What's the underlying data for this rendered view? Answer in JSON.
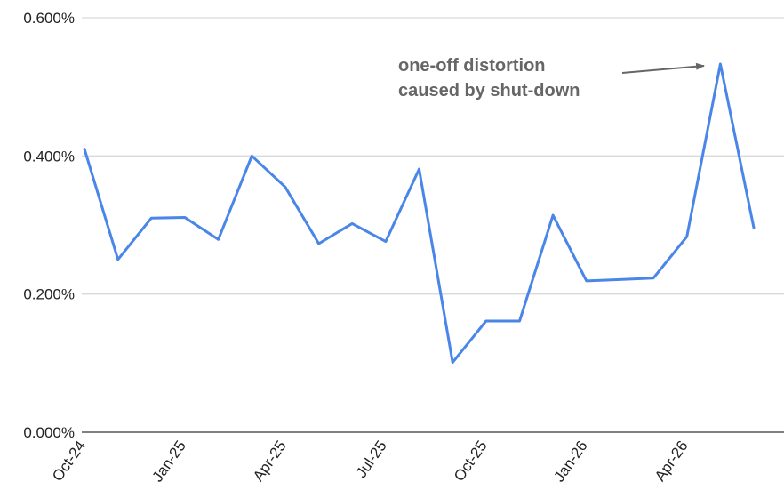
{
  "chart_data": {
    "type": "line",
    "title": "",
    "xlabel": "",
    "ylabel": "",
    "ylim": [
      0,
      0.6
    ],
    "y_ticks": [
      0,
      0.2,
      0.4,
      0.6
    ],
    "y_tick_labels": [
      "0.000%",
      "0.200%",
      "0.400%",
      "0.600%"
    ],
    "x": [
      "Oct-24",
      "Nov-24",
      "Dec-24",
      "Jan-25",
      "Feb-25",
      "Mar-25",
      "Apr-25",
      "May-25",
      "Jun-25",
      "Jul-25",
      "Aug-25",
      "Sep-25",
      "Oct-25",
      "Nov-25",
      "Dec-25",
      "Jan-26",
      "Feb-26",
      "Mar-26",
      "Apr-26",
      "May-26",
      "Jun-26"
    ],
    "x_tick_labels": [
      "Oct-24",
      "Jan-25",
      "Apr-25",
      "Jul-25",
      "Oct-25",
      "Jan-26",
      "Apr-26"
    ],
    "grid": true,
    "legend": "none",
    "series": [
      {
        "color": "#4a86e8",
        "values": [
          0.41,
          0.25,
          0.31,
          0.311,
          0.279,
          0.4,
          0.355,
          0.273,
          0.302,
          0.276,
          0.381,
          0.101,
          0.161,
          0.161,
          0.314,
          0.219,
          0.221,
          0.223,
          0.283,
          0.533,
          0.296
        ]
      }
    ],
    "annotations": [
      {
        "lines": [
          "one-off distortion",
          "caused by shut-down"
        ],
        "target_category": "May-26"
      }
    ]
  }
}
